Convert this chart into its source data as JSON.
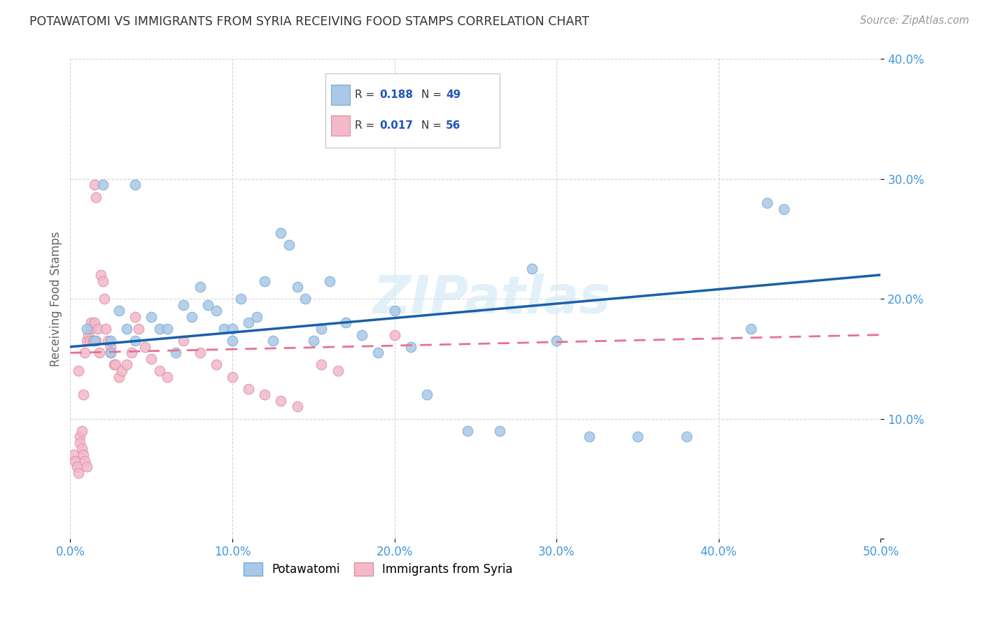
{
  "title": "POTAWATOMI VS IMMIGRANTS FROM SYRIA RECEIVING FOOD STAMPS CORRELATION CHART",
  "source": "Source: ZipAtlas.com",
  "ylabel": "Receiving Food Stamps",
  "xlim": [
    0.0,
    0.5
  ],
  "ylim": [
    0.0,
    0.4
  ],
  "xticks": [
    0.0,
    0.1,
    0.2,
    0.3,
    0.4,
    0.5
  ],
  "yticks": [
    0.0,
    0.1,
    0.2,
    0.3,
    0.4
  ],
  "xticklabels": [
    "0.0%",
    "10.0%",
    "20.0%",
    "30.0%",
    "40.0%",
    "50.0%"
  ],
  "yticklabels": [
    "",
    "10.0%",
    "20.0%",
    "30.0%",
    "40.0%"
  ],
  "blue_color": "#a8c8e8",
  "pink_color": "#f4b8c8",
  "blue_line_color": "#1a5fa8",
  "pink_line_color": "#e87090",
  "title_color": "#333333",
  "axis_color": "#4499dd",
  "grid_color": "#cccccc",
  "blue_scatter_x": [
    0.01,
    0.015,
    0.02,
    0.025,
    0.025,
    0.03,
    0.035,
    0.04,
    0.04,
    0.05,
    0.055,
    0.06,
    0.065,
    0.07,
    0.075,
    0.08,
    0.085,
    0.09,
    0.095,
    0.1,
    0.1,
    0.105,
    0.11,
    0.115,
    0.12,
    0.125,
    0.13,
    0.135,
    0.14,
    0.145,
    0.15,
    0.155,
    0.16,
    0.17,
    0.18,
    0.19,
    0.2,
    0.21,
    0.22,
    0.245,
    0.265,
    0.3,
    0.35,
    0.38,
    0.42,
    0.43,
    0.44,
    0.285,
    0.32
  ],
  "blue_scatter_y": [
    0.175,
    0.165,
    0.295,
    0.165,
    0.155,
    0.19,
    0.175,
    0.295,
    0.165,
    0.185,
    0.175,
    0.175,
    0.155,
    0.195,
    0.185,
    0.21,
    0.195,
    0.19,
    0.175,
    0.175,
    0.165,
    0.2,
    0.18,
    0.185,
    0.215,
    0.165,
    0.255,
    0.245,
    0.21,
    0.2,
    0.165,
    0.175,
    0.215,
    0.18,
    0.17,
    0.155,
    0.19,
    0.16,
    0.12,
    0.09,
    0.09,
    0.165,
    0.085,
    0.085,
    0.175,
    0.28,
    0.275,
    0.225,
    0.085
  ],
  "pink_scatter_x": [
    0.002,
    0.003,
    0.004,
    0.005,
    0.005,
    0.006,
    0.006,
    0.007,
    0.007,
    0.008,
    0.008,
    0.009,
    0.009,
    0.01,
    0.01,
    0.011,
    0.012,
    0.013,
    0.013,
    0.014,
    0.015,
    0.015,
    0.016,
    0.016,
    0.017,
    0.018,
    0.019,
    0.02,
    0.021,
    0.022,
    0.023,
    0.025,
    0.025,
    0.027,
    0.028,
    0.03,
    0.032,
    0.035,
    0.038,
    0.04,
    0.042,
    0.046,
    0.05,
    0.055,
    0.06,
    0.07,
    0.08,
    0.09,
    0.1,
    0.11,
    0.12,
    0.13,
    0.14,
    0.155,
    0.165,
    0.2
  ],
  "pink_scatter_y": [
    0.07,
    0.065,
    0.06,
    0.055,
    0.14,
    0.085,
    0.08,
    0.075,
    0.09,
    0.12,
    0.07,
    0.065,
    0.155,
    0.165,
    0.06,
    0.17,
    0.165,
    0.18,
    0.175,
    0.165,
    0.18,
    0.295,
    0.285,
    0.165,
    0.175,
    0.155,
    0.22,
    0.215,
    0.2,
    0.175,
    0.165,
    0.16,
    0.155,
    0.145,
    0.145,
    0.135,
    0.14,
    0.145,
    0.155,
    0.185,
    0.175,
    0.16,
    0.15,
    0.14,
    0.135,
    0.165,
    0.155,
    0.145,
    0.135,
    0.125,
    0.12,
    0.115,
    0.11,
    0.145,
    0.14,
    0.17
  ],
  "blue_line_x0": 0.0,
  "blue_line_y0": 0.16,
  "blue_line_x1": 0.5,
  "blue_line_y1": 0.22,
  "pink_line_x0": 0.0,
  "pink_line_y0": 0.155,
  "pink_line_x1": 0.5,
  "pink_line_y1": 0.17
}
